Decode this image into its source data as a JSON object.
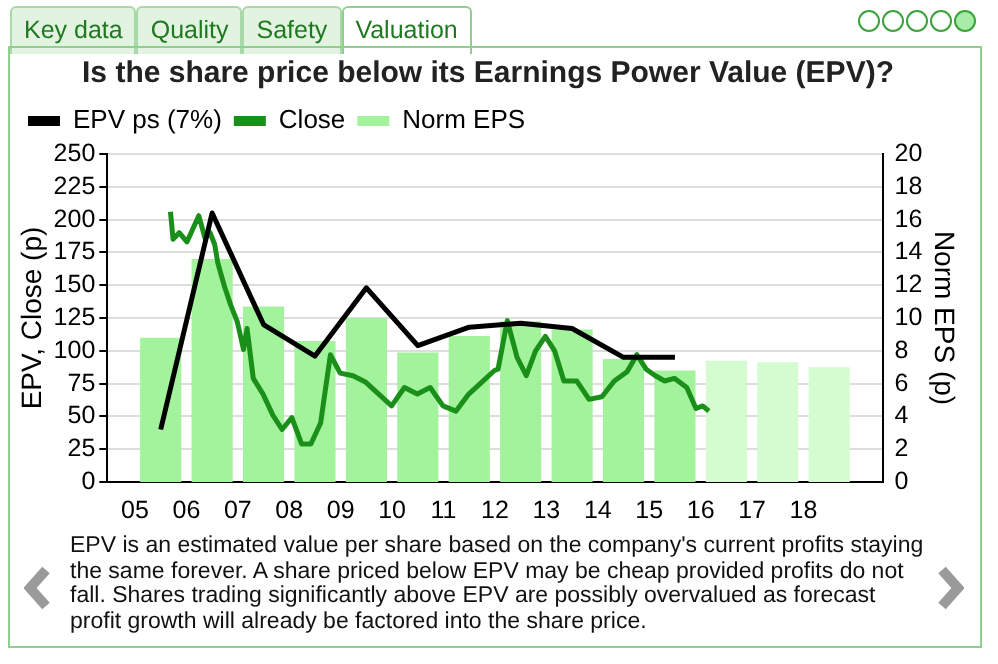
{
  "chart_data": {
    "type": "bar",
    "title": "Is the share price below its Earnings Power Value (EPV)?",
    "ylabel": "EPV, Close (p)",
    "y2label": "Norm EPS (p)",
    "annotations": [
      "Key data",
      "Quality",
      "Safety",
      "Valuation",
      "EPV is an estimated value per share based on the company's current profits staying the same forever. A share priced below EPV may be cheap provided profits do not fall. Shares trading significantly above EPV are possibly overvalued as forecast profit growth will already be factored into the share price."
    ],
    "xlim": [
      2005,
      2019
    ],
    "xticks": [
      {
        "value": 2005,
        "label": "05"
      },
      {
        "value": 2006,
        "label": "06"
      },
      {
        "value": 2007,
        "label": "07"
      },
      {
        "value": 2008,
        "label": "08"
      },
      {
        "value": 2009,
        "label": "09"
      },
      {
        "value": 2010,
        "label": "10"
      },
      {
        "value": 2011,
        "label": "11"
      },
      {
        "value": 2012,
        "label": "12"
      },
      {
        "value": 2013,
        "label": "13"
      },
      {
        "value": 2014,
        "label": "14"
      },
      {
        "value": 2015,
        "label": "15"
      },
      {
        "value": 2016,
        "label": "16"
      },
      {
        "value": 2017,
        "label": "17"
      },
      {
        "value": 2018,
        "label": "18"
      }
    ],
    "ylim": [
      0,
      250
    ],
    "yticks": [
      0,
      25,
      50,
      75,
      100,
      125,
      150,
      175,
      200,
      225,
      250
    ],
    "y2lim": [
      0,
      20
    ],
    "y2ticks": [
      0,
      2,
      4,
      6,
      8,
      10,
      12,
      14,
      16,
      18,
      20
    ],
    "grid": "y",
    "legend": "top left",
    "series": [
      {
        "name": "EPV ps (7%)",
        "type": "line",
        "color": "#000000",
        "x": [
          2005.5,
          2006.5,
          2007.5,
          2008.5,
          2009.5,
          2010.5,
          2011.5,
          2012.5,
          2013.5,
          2014.5,
          2015.5
        ],
        "values": [
          40,
          205,
          120,
          96,
          148,
          104,
          118,
          121,
          117,
          95,
          95
        ]
      },
      {
        "name": "Close",
        "type": "line",
        "color": "#1a8f1a",
        "x": [
          2005.69,
          2005.74,
          2005.86,
          2006.01,
          2006.24,
          2006.36,
          2006.46,
          2006.55,
          2006.61,
          2006.74,
          2006.86,
          2006.99,
          2007.11,
          2007.18,
          2007.3,
          2007.49,
          2007.68,
          2007.86,
          2008.05,
          2008.24,
          2008.42,
          2008.61,
          2008.8,
          2008.99,
          2009.24,
          2009.49,
          2009.74,
          2009.99,
          2010.24,
          2010.49,
          2010.74,
          2010.99,
          2011.24,
          2011.49,
          2011.74,
          2011.99,
          2012.06,
          2012.24,
          2012.43,
          2012.61,
          2012.79,
          2012.98,
          2013.16,
          2013.34,
          2013.59,
          2013.83,
          2014.08,
          2014.32,
          2014.57,
          2014.76,
          2014.94,
          2015.12,
          2015.3,
          2015.49,
          2015.73,
          2015.91,
          2016.04,
          2016.16
        ],
        "values": [
          206,
          185,
          190,
          183,
          203,
          186,
          190,
          181,
          167,
          149,
          135,
          122,
          101,
          117,
          79,
          67,
          51,
          40,
          49,
          29,
          29,
          45,
          97,
          83,
          81,
          76,
          67,
          58,
          72,
          67,
          72,
          58,
          54,
          67,
          76,
          85,
          86,
          123,
          95,
          81,
          100,
          111,
          100,
          77,
          77,
          63,
          65,
          77,
          84,
          97,
          86,
          81,
          77,
          79,
          72,
          56,
          58,
          54
        ]
      },
      {
        "name": "Norm EPS",
        "axis": "y2",
        "color": "#a3f29c",
        "colors": [
          "#a3f29c",
          "#a3f29c",
          "#a3f29c",
          "#a3f29c",
          "#a3f29c",
          "#a3f29c",
          "#a3f29c",
          "#a3f29c",
          "#a3f29c",
          "#a3f29c",
          "#a3f29c",
          "#d5fbd1",
          "#d5fbd1",
          "#d5fbd1"
        ],
        "x": [
          2005.5,
          2006.5,
          2007.5,
          2008.5,
          2009.5,
          2010.5,
          2011.5,
          2012.5,
          2013.5,
          2014.5,
          2015.5,
          2016.5,
          2017.5,
          2018.5
        ],
        "values": [
          8.8,
          13.6,
          10.7,
          8.6,
          10,
          7.9,
          8.9,
          9.8,
          9.3,
          7.5,
          6.8,
          7.4,
          7.3,
          7
        ]
      }
    ]
  }
}
